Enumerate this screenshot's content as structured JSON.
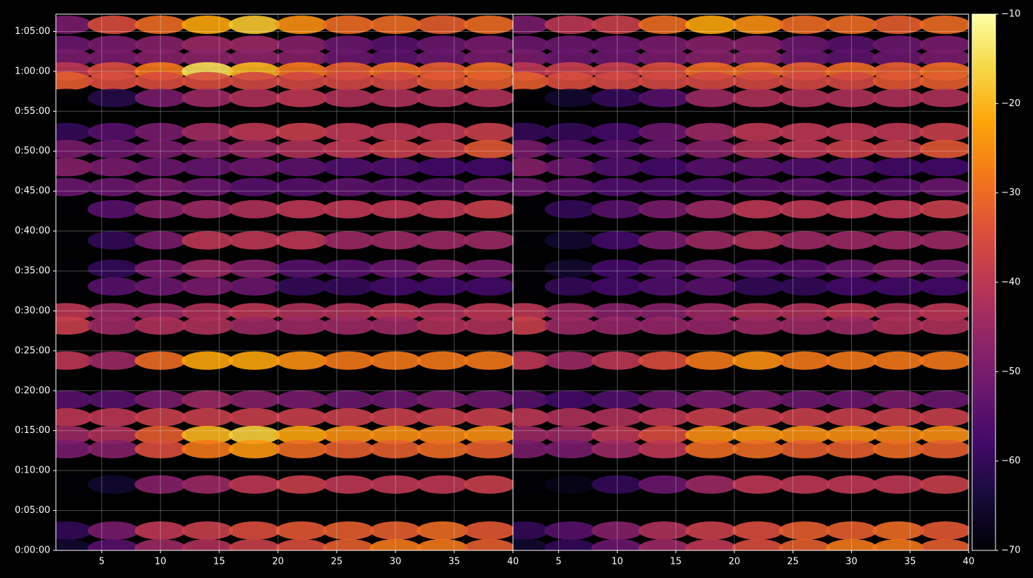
{
  "chart_data": [
    {
      "type": "heatmap",
      "x": [
        2,
        6,
        10,
        14,
        18,
        22,
        26,
        30,
        34,
        38
      ],
      "y": [
        3950,
        3800,
        3700,
        3600,
        3527,
        3400,
        3144,
        3016,
        2880,
        2730,
        2564,
        2330,
        2117,
        1984,
        1790,
        1690,
        1426,
        1133,
        1000,
        867,
        761,
        495,
        149,
        16
      ],
      "values": [
        [
          -50,
          -35,
          -30,
          -22,
          -18,
          -25,
          -30,
          -30,
          -32,
          -30
        ],
        [
          -52,
          -50,
          -48,
          -45,
          -45,
          -48,
          -52,
          -55,
          -52,
          -50
        ],
        [
          -50,
          -50,
          -48,
          -47,
          -47,
          -48,
          -52,
          -54,
          -52,
          -50
        ],
        [
          -40,
          -35,
          -28,
          -15,
          -20,
          -28,
          -32,
          -30,
          -32,
          -30
        ],
        [
          -32,
          -35,
          -35,
          -35,
          -36,
          -36,
          -36,
          -36,
          -33,
          -32
        ],
        [
          -70,
          -62,
          -50,
          -45,
          -42,
          -40,
          -42,
          -42,
          -42,
          -42
        ],
        [
          -60,
          -55,
          -50,
          -44,
          -40,
          -38,
          -40,
          -40,
          -40,
          -38
        ],
        [
          -50,
          -52,
          -50,
          -48,
          -45,
          -42,
          -40,
          -38,
          -38,
          -33
        ],
        [
          -48,
          -50,
          -52,
          -53,
          -52,
          -54,
          -56,
          -56,
          -58,
          -58
        ],
        [
          -52,
          -52,
          -50,
          -52,
          -55,
          -55,
          -54,
          -55,
          -55,
          -52
        ],
        [
          -70,
          -55,
          -48,
          -45,
          -42,
          -40,
          -40,
          -40,
          -40,
          -38
        ],
        [
          -70,
          -60,
          -50,
          -40,
          -40,
          -40,
          -45,
          -45,
          -45,
          -45
        ],
        [
          -70,
          -60,
          -50,
          -45,
          -48,
          -55,
          -55,
          -52,
          -48,
          -50
        ],
        [
          -70,
          -55,
          -52,
          -50,
          -52,
          -60,
          -60,
          -58,
          -58,
          -58
        ],
        [
          -40,
          -45,
          -45,
          -42,
          -40,
          -42,
          -42,
          -40,
          -42,
          -40
        ],
        [
          -38,
          -45,
          -42,
          -42,
          -45,
          -45,
          -45,
          -45,
          -42,
          -42
        ],
        [
          -40,
          -45,
          -30,
          -22,
          -22,
          -25,
          -28,
          -28,
          -28,
          -28
        ],
        [
          -55,
          -55,
          -50,
          -45,
          -48,
          -50,
          -52,
          -52,
          -50,
          -52
        ],
        [
          -40,
          -40,
          -38,
          -38,
          -38,
          -38,
          -38,
          -38,
          -38,
          -38
        ],
        [
          -45,
          -42,
          -32,
          -20,
          -17,
          -22,
          -25,
          -25,
          -26,
          -25
        ],
        [
          -50,
          -48,
          -35,
          -28,
          -24,
          -30,
          -32,
          -32,
          -30,
          -32
        ],
        [
          -70,
          -65,
          -48,
          -45,
          -40,
          -38,
          -40,
          -40,
          -40,
          -38
        ],
        [
          -60,
          -50,
          -40,
          -38,
          -35,
          -33,
          -32,
          -32,
          -30,
          -33
        ],
        [
          -65,
          -55,
          -45,
          -42,
          -38,
          -35,
          -32,
          -28,
          -28,
          -32
        ]
      ],
      "xlim": [
        1.1,
        40
      ],
      "xticks": [
        5,
        10,
        15,
        20,
        25,
        30,
        35,
        40
      ],
      "ylim": [
        0,
        4030
      ],
      "yticks": [
        {
          "value": 0,
          "label": "0:00:00"
        },
        {
          "value": 300,
          "label": "0:05:00"
        },
        {
          "value": 600,
          "label": "0:10:00"
        },
        {
          "value": 900,
          "label": "0:15:00"
        },
        {
          "value": 1200,
          "label": "0:20:00"
        },
        {
          "value": 1500,
          "label": "0:25:00"
        },
        {
          "value": 1800,
          "label": "0:30:00"
        },
        {
          "value": 2100,
          "label": "0:35:00"
        },
        {
          "value": 2400,
          "label": "0:40:00"
        },
        {
          "value": 2700,
          "label": "0:45:00"
        },
        {
          "value": 3000,
          "label": "0:50:00"
        },
        {
          "value": 3300,
          "label": "0:55:00"
        },
        {
          "value": 3600,
          "label": "1:00:00"
        },
        {
          "value": 3900,
          "label": "1:05:00"
        }
      ],
      "grid": true
    },
    {
      "type": "heatmap",
      "x": [
        2,
        6,
        10,
        14,
        18,
        22,
        26,
        30,
        34,
        38
      ],
      "y": [
        3950,
        3800,
        3700,
        3600,
        3527,
        3400,
        3144,
        3016,
        2880,
        2730,
        2564,
        2330,
        2117,
        1984,
        1790,
        1690,
        1426,
        1133,
        1000,
        867,
        761,
        495,
        149,
        16
      ],
      "values": [
        [
          -50,
          -40,
          -38,
          -30,
          -22,
          -25,
          -30,
          -30,
          -32,
          -30
        ],
        [
          -52,
          -52,
          -52,
          -50,
          -48,
          -48,
          -52,
          -55,
          -52,
          -50
        ],
        [
          -50,
          -52,
          -52,
          -50,
          -48,
          -48,
          -52,
          -54,
          -52,
          -50
        ],
        [
          -40,
          -38,
          -38,
          -35,
          -30,
          -30,
          -32,
          -30,
          -32,
          -30
        ],
        [
          -32,
          -35,
          -36,
          -36,
          -36,
          -36,
          -36,
          -36,
          -33,
          -32
        ],
        [
          -70,
          -65,
          -60,
          -55,
          -45,
          -42,
          -42,
          -42,
          -42,
          -42
        ],
        [
          -60,
          -60,
          -58,
          -52,
          -45,
          -40,
          -40,
          -40,
          -40,
          -38
        ],
        [
          -50,
          -55,
          -55,
          -52,
          -48,
          -42,
          -40,
          -38,
          -38,
          -33
        ],
        [
          -48,
          -52,
          -56,
          -58,
          -55,
          -55,
          -56,
          -56,
          -58,
          -58
        ],
        [
          -52,
          -54,
          -56,
          -56,
          -56,
          -55,
          -54,
          -55,
          -55,
          -52
        ],
        [
          -70,
          -60,
          -55,
          -50,
          -45,
          -40,
          -40,
          -40,
          -40,
          -38
        ],
        [
          -70,
          -65,
          -58,
          -50,
          -45,
          -42,
          -45,
          -45,
          -45,
          -45
        ],
        [
          -70,
          -65,
          -58,
          -55,
          -52,
          -55,
          -55,
          -52,
          -48,
          -50
        ],
        [
          -70,
          -60,
          -58,
          -56,
          -55,
          -60,
          -60,
          -58,
          -58,
          -58
        ],
        [
          -40,
          -45,
          -48,
          -48,
          -45,
          -42,
          -42,
          -40,
          -42,
          -40
        ],
        [
          -38,
          -45,
          -46,
          -46,
          -46,
          -45,
          -45,
          -45,
          -42,
          -42
        ],
        [
          -40,
          -45,
          -40,
          -35,
          -28,
          -25,
          -28,
          -28,
          -28,
          -28
        ],
        [
          -55,
          -58,
          -56,
          -52,
          -50,
          -50,
          -52,
          -52,
          -50,
          -52
        ],
        [
          -40,
          -42,
          -42,
          -40,
          -38,
          -38,
          -38,
          -38,
          -38,
          -38
        ],
        [
          -45,
          -45,
          -40,
          -35,
          -25,
          -24,
          -25,
          -25,
          -26,
          -25
        ],
        [
          -50,
          -50,
          -45,
          -40,
          -30,
          -30,
          -32,
          -32,
          -30,
          -32
        ],
        [
          -70,
          -68,
          -60,
          -52,
          -45,
          -40,
          -40,
          -40,
          -40,
          -38
        ],
        [
          -60,
          -55,
          -48,
          -42,
          -38,
          -35,
          -32,
          -32,
          -30,
          -33
        ],
        [
          -65,
          -60,
          -52,
          -45,
          -40,
          -35,
          -32,
          -28,
          -28,
          -32
        ]
      ],
      "xlim": [
        1.1,
        40
      ],
      "xticks": [
        5,
        10,
        15,
        20,
        25,
        30,
        35,
        40
      ],
      "ylim": [
        0,
        4030
      ],
      "grid": true
    }
  ],
  "colorbar": {
    "lim": [
      -70,
      -10
    ],
    "ticks": [
      {
        "value": -70,
        "label": "−70"
      },
      {
        "value": -60,
        "label": "−60"
      },
      {
        "value": -50,
        "label": "−50"
      },
      {
        "value": -40,
        "label": "−40"
      },
      {
        "value": -30,
        "label": "−30"
      },
      {
        "value": -20,
        "label": "−20"
      },
      {
        "value": -10,
        "label": "−10"
      }
    ],
    "colormap": "inferno"
  }
}
